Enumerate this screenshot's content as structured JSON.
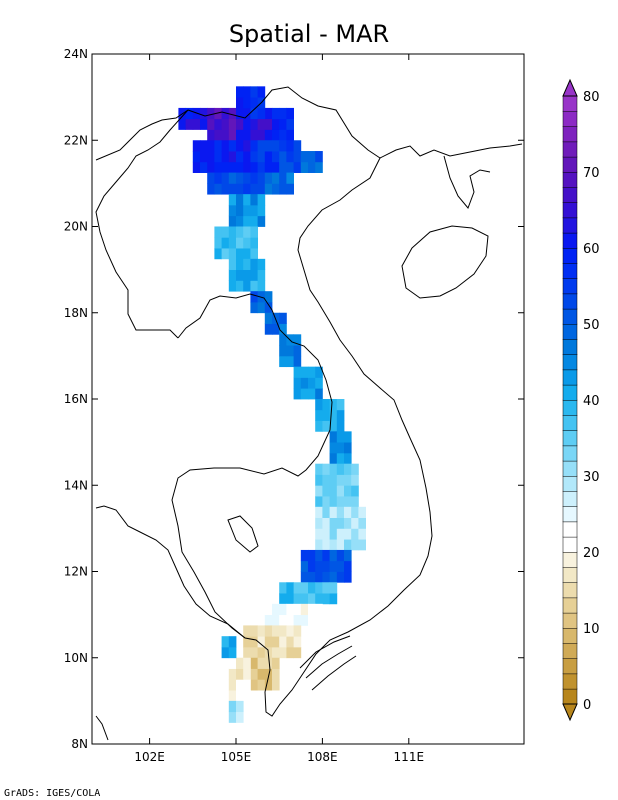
{
  "title": "Spatial - MAR",
  "credit": "GrADS: IGES/COLA",
  "map": {
    "lon_range": [
      100,
      115
    ],
    "lat_range": [
      8,
      24
    ],
    "lon_ticks": [
      {
        "value": 102,
        "label": "102E"
      },
      {
        "value": 105,
        "label": "105E"
      },
      {
        "value": 108,
        "label": "108E"
      },
      {
        "value": 111,
        "label": "111E"
      }
    ],
    "lat_ticks": [
      {
        "value": 8,
        "label": "8N"
      },
      {
        "value": 10,
        "label": "10N"
      },
      {
        "value": 12,
        "label": "12N"
      },
      {
        "value": 14,
        "label": "14N"
      },
      {
        "value": 16,
        "label": "16N"
      },
      {
        "value": 18,
        "label": "18N"
      },
      {
        "value": 20,
        "label": "20N"
      },
      {
        "value": 22,
        "label": "22N"
      },
      {
        "value": 24,
        "label": "24N"
      }
    ]
  },
  "colorbar": {
    "min": 0,
    "max": 80,
    "step": 2,
    "tick_values": [
      0,
      10,
      20,
      30,
      40,
      50,
      60,
      70,
      80
    ],
    "tick_labels": [
      "0",
      "10",
      "20",
      "30",
      "40",
      "50",
      "60",
      "70",
      "80"
    ],
    "colors": [
      "#b8861c",
      "#c0922e",
      "#c89e42",
      "#d0aa56",
      "#d8b86c",
      "#e0c482",
      "#e6d096",
      "#ecdcae",
      "#f2e8c6",
      "#f8f2de",
      "#ffffff",
      "#ffffff",
      "#e6f8ff",
      "#cdf0fc",
      "#b2e8fa",
      "#96dff8",
      "#7ad6f6",
      "#5ecdf4",
      "#44c3f2",
      "#2ab8ef",
      "#14aced",
      "#0a9ae8",
      "#0488e2",
      "#0078dc",
      "#0066e0",
      "#0056e4",
      "#0048e8",
      "#003aee",
      "#002ef2",
      "#0022f4",
      "#0a18f0",
      "#2214e0",
      "#3410d4",
      "#4410c8",
      "#5412c0",
      "#6216ba",
      "#701cba",
      "#7e22be",
      "#8c2ac4",
      "#9834c8"
    ]
  },
  "legend_colors_note": "",
  "chart_data": {
    "type": "heatmap",
    "title": "Spatial - MAR",
    "xlabel": "",
    "ylabel": "",
    "x_range": [
      100,
      115
    ],
    "y_range": [
      8,
      24
    ],
    "cell_size_deg": 0.25,
    "value_range": [
      0,
      80
    ],
    "regions": [
      {
        "lat": [
          22.25,
          22.75
        ],
        "lon": [
          103.0,
          104.0
        ],
        "value": 62
      },
      {
        "lat": [
          22.0,
          22.75
        ],
        "lon": [
          104.0,
          105.0
        ],
        "value": 68
      },
      {
        "lat": [
          22.0,
          22.75
        ],
        "lon": [
          105.0,
          106.25
        ],
        "value": 64
      },
      {
        "lat": [
          22.5,
          23.25
        ],
        "lon": [
          105.0,
          106.0
        ],
        "value": 58
      },
      {
        "lat": [
          22.0,
          22.75
        ],
        "lon": [
          106.25,
          107.0
        ],
        "value": 58
      },
      {
        "lat": [
          21.25,
          22.0
        ],
        "lon": [
          103.5,
          104.5
        ],
        "value": 58
      },
      {
        "lat": [
          21.0,
          22.0
        ],
        "lon": [
          104.5,
          105.5
        ],
        "value": 60
      },
      {
        "lat": [
          21.0,
          22.0
        ],
        "lon": [
          105.5,
          106.5
        ],
        "value": 56
      },
      {
        "lat": [
          21.25,
          22.0
        ],
        "lon": [
          106.5,
          107.25
        ],
        "value": 54
      },
      {
        "lat": [
          21.25,
          21.75
        ],
        "lon": [
          107.25,
          108.0
        ],
        "value": 50
      },
      {
        "lat": [
          20.75,
          21.25
        ],
        "lon": [
          104.0,
          106.0
        ],
        "value": 52
      },
      {
        "lat": [
          20.75,
          21.25
        ],
        "lon": [
          106.0,
          107.0
        ],
        "value": 48
      },
      {
        "lat": [
          20.0,
          20.75
        ],
        "lon": [
          104.75,
          106.0
        ],
        "value": 44
      },
      {
        "lat": [
          19.25,
          20.0
        ],
        "lon": [
          104.25,
          105.75
        ],
        "value": 38
      },
      {
        "lat": [
          18.5,
          19.25
        ],
        "lon": [
          104.75,
          106.0
        ],
        "value": 40
      },
      {
        "lat": [
          18.0,
          18.5
        ],
        "lon": [
          105.5,
          106.25
        ],
        "value": 50
      },
      {
        "lat": [
          17.5,
          18.0
        ],
        "lon": [
          106.0,
          106.75
        ],
        "value": 48
      },
      {
        "lat": [
          16.75,
          17.5
        ],
        "lon": [
          106.5,
          107.25
        ],
        "value": 46
      },
      {
        "lat": [
          16.0,
          16.75
        ],
        "lon": [
          107.0,
          108.0
        ],
        "value": 44
      },
      {
        "lat": [
          15.25,
          16.0
        ],
        "lon": [
          107.75,
          108.75
        ],
        "value": 40
      },
      {
        "lat": [
          14.5,
          15.25
        ],
        "lon": [
          108.25,
          109.0
        ],
        "value": 44
      },
      {
        "lat": [
          13.5,
          14.5
        ],
        "lon": [
          107.75,
          109.25
        ],
        "value": 34
      },
      {
        "lat": [
          12.5,
          13.5
        ],
        "lon": [
          107.75,
          109.5
        ],
        "value": 30
      },
      {
        "lat": [
          11.75,
          12.5
        ],
        "lon": [
          107.25,
          109.0
        ],
        "value": 52
      },
      {
        "lat": [
          11.25,
          11.75
        ],
        "lon": [
          106.5,
          108.5
        ],
        "value": 38
      },
      {
        "lat": [
          10.75,
          11.25
        ],
        "lon": [
          106.0,
          108.0
        ],
        "value": 22
      },
      {
        "lat": [
          10.0,
          10.75
        ],
        "lon": [
          105.25,
          107.25
        ],
        "value": 16
      },
      {
        "lat": [
          9.25,
          10.0
        ],
        "lon": [
          105.5,
          106.5
        ],
        "value": 12
      },
      {
        "lat": [
          9.0,
          10.0
        ],
        "lon": [
          104.75,
          105.5
        ],
        "value": 18
      },
      {
        "lat": [
          8.5,
          9.0
        ],
        "lon": [
          104.75,
          105.25
        ],
        "value": 30
      },
      {
        "lat": [
          10.0,
          10.5
        ],
        "lon": [
          104.5,
          105.0
        ],
        "value": 40
      }
    ]
  }
}
